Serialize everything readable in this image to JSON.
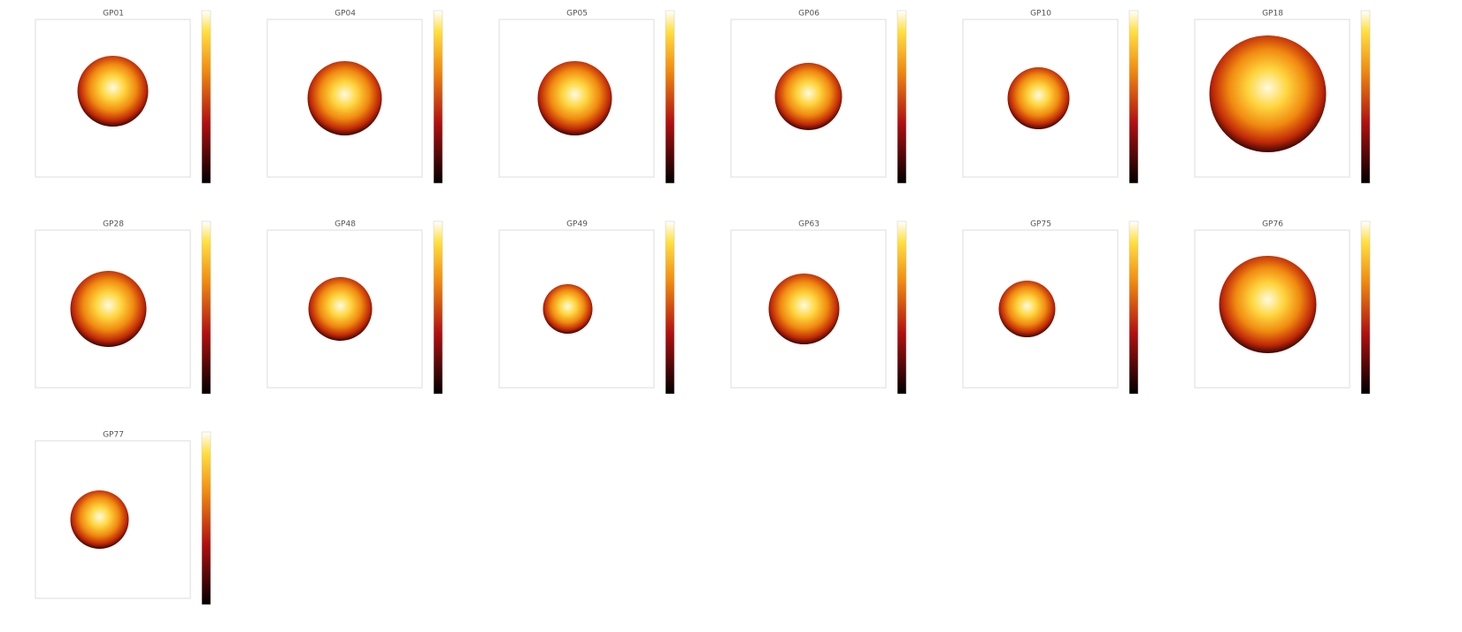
{
  "chart_data": [
    {
      "type": "heatmap",
      "title": "GP01"
    },
    {
      "type": "heatmap",
      "title": "GP04"
    },
    {
      "type": "heatmap",
      "title": "GP05"
    },
    {
      "type": "heatmap",
      "title": "GP06"
    },
    {
      "type": "heatmap",
      "title": "GP10"
    },
    {
      "type": "heatmap",
      "title": "GP18"
    },
    {
      "type": "heatmap",
      "title": "GP28"
    },
    {
      "type": "heatmap",
      "title": "GP48"
    },
    {
      "type": "heatmap",
      "title": "GP49"
    },
    {
      "type": "heatmap",
      "title": "GP63"
    },
    {
      "type": "heatmap",
      "title": "GP75"
    },
    {
      "type": "heatmap",
      "title": "GP76"
    },
    {
      "type": "heatmap",
      "title": "GP77"
    }
  ]
}
